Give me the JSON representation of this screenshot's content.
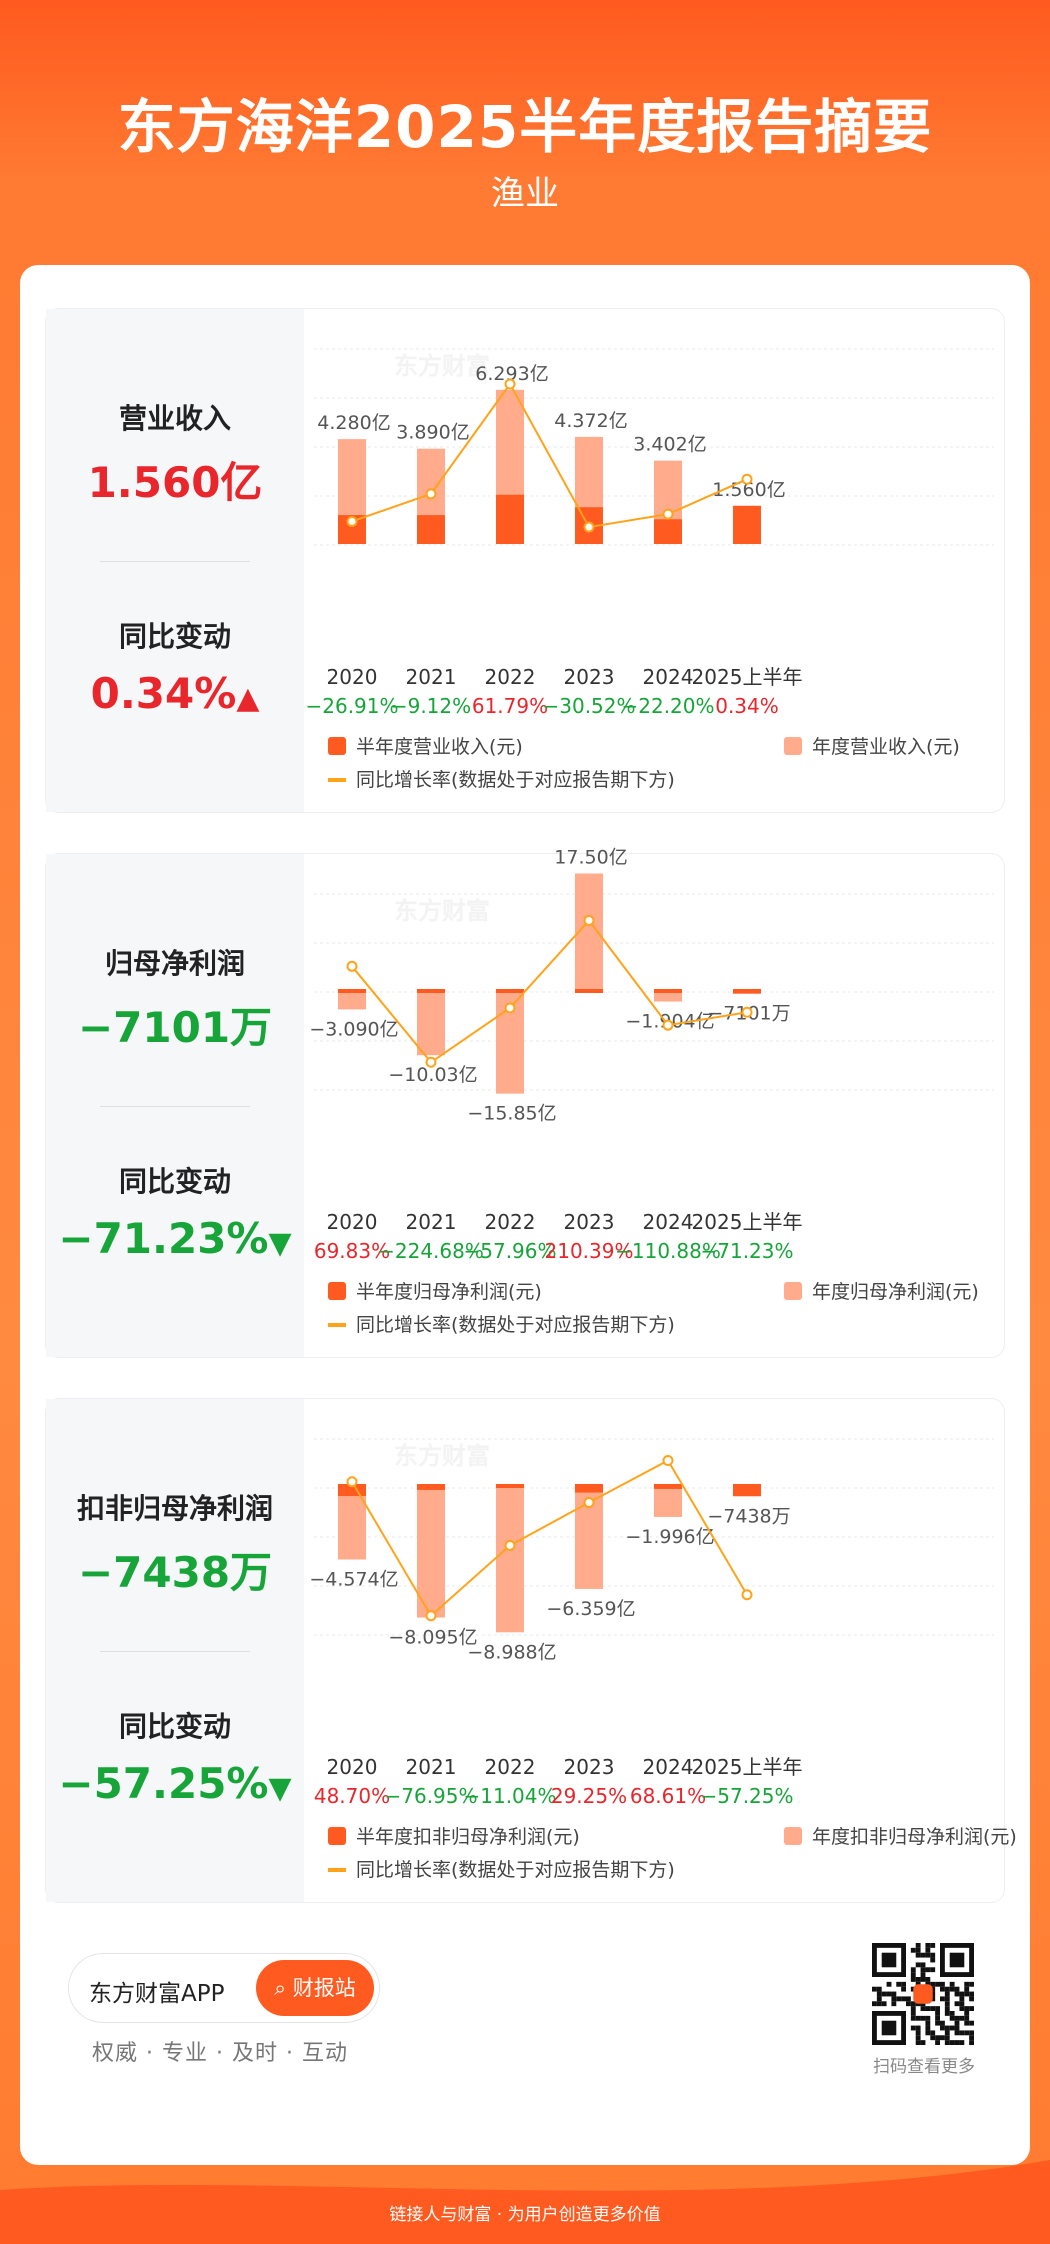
{
  "header": {
    "title": "东方海洋2025半年度报告摘要",
    "subtitle": "渔业"
  },
  "cards": [
    {
      "metric_label": "营业收入",
      "metric_value": "1.560亿",
      "change_label": "同比变动",
      "change_value": "0.34%",
      "change_dir": "up",
      "legend_half": "半年度营业收入(元)",
      "legend_annual": "年度营业收入(元)",
      "legend_line": "同比增长率(数据处于对应报告期下方)"
    },
    {
      "metric_label": "归母净利润",
      "metric_value": "−7101万",
      "change_label": "同比变动",
      "change_value": "−71.23%",
      "change_dir": "down",
      "legend_half": "半年度归母净利润(元)",
      "legend_annual": "年度归母净利润(元)",
      "legend_line": "同比增长率(数据处于对应报告期下方)"
    },
    {
      "metric_label": "扣非归母净利润",
      "metric_value": "−7438万",
      "change_label": "同比变动",
      "change_value": "−57.25%",
      "change_dir": "down",
      "legend_half": "半年度扣非归母净利润(元)",
      "legend_annual": "年度扣非归母净利润(元)",
      "legend_line": "同比增长率(数据处于对应报告期下方)"
    }
  ],
  "chart_data": [
    {
      "type": "bar",
      "categories": [
        "2020",
        "2021",
        "2022",
        "2023",
        "2024",
        "2025上半年"
      ],
      "series": [
        {
          "name": "半年度营业收入(元)",
          "values": [
            1.18,
            1.18,
            2.01,
            1.5,
            1.01,
            1.56
          ],
          "unit": "亿"
        },
        {
          "name": "年度营业收入(元)",
          "values": [
            4.28,
            3.89,
            6.293,
            4.372,
            3.402,
            null
          ],
          "unit": "亿",
          "labels": [
            "4.280亿",
            "3.890亿",
            "6.293亿",
            "4.372亿",
            "3.402亿",
            "1.560亿"
          ]
        },
        {
          "name": "同比增长率(数据处于对应报告期下方)",
          "type": "line",
          "values": [
            -26.91,
            -9.12,
            61.79,
            -30.52,
            -22.2,
            0.34
          ],
          "labels": [
            "−26.91%",
            "−9.12%",
            "61.79%",
            "−30.52%",
            "−22.20%",
            "0.34%"
          ]
        }
      ]
    },
    {
      "type": "bar",
      "categories": [
        "2020",
        "2021",
        "2022",
        "2023",
        "2024",
        "2025上半年"
      ],
      "series": [
        {
          "name": "半年度归母净利润(元)",
          "values": [
            -0.25,
            -0.04,
            -0.6,
            -0.04,
            -0.08,
            -0.7101
          ],
          "unit": "亿"
        },
        {
          "name": "年度归母净利润(元)",
          "values": [
            -3.09,
            -10.03,
            -15.85,
            17.5,
            -1.904,
            null
          ],
          "unit": "亿",
          "labels": [
            "−3.090亿",
            "−10.03亿",
            "−15.85亿",
            "17.50亿",
            "−1.904亿",
            "−7101万"
          ]
        },
        {
          "name": "同比增长率(数据处于对应报告期下方)",
          "type": "line",
          "values": [
            69.83,
            -224.68,
            -57.96,
            210.39,
            -110.88,
            -71.23
          ],
          "labels": [
            "69.83%",
            "−224.68%",
            "−57.96%",
            "210.39%",
            "−110.88%",
            "−71.23%"
          ]
        }
      ]
    },
    {
      "type": "bar",
      "categories": [
        "2020",
        "2021",
        "2022",
        "2023",
        "2024",
        "2025上半年"
      ],
      "series": [
        {
          "name": "半年度扣非归母净利润(元)",
          "values": [
            -0.73,
            -0.36,
            -0.05,
            -0.52,
            -0.3,
            -0.7438
          ],
          "unit": "亿"
        },
        {
          "name": "年度扣非归母净利润(元)",
          "values": [
            -4.574,
            -8.095,
            -8.988,
            -6.359,
            -1.996,
            null
          ],
          "unit": "亿",
          "labels": [
            "−4.574亿",
            "−8.095亿",
            "−8.988亿",
            "−6.359亿",
            "−1.996亿",
            "−7438万"
          ]
        },
        {
          "name": "同比增长率(数据处于对应报告期下方)",
          "type": "line",
          "values": [
            48.7,
            -76.95,
            -11.04,
            29.25,
            68.61,
            -57.25
          ],
          "labels": [
            "48.70%",
            "−76.95%",
            "−11.04%",
            "29.25%",
            "68.61%",
            "−57.25%"
          ]
        }
      ]
    }
  ],
  "footer": {
    "app_name": "东方财富APP",
    "app_button": "财报站",
    "slogan": "权威 · 专业 · 及时 · 互动",
    "qr_label": "扫码查看更多",
    "bottom_line": "链接人与财富 · 为用户创造更多价值",
    "watermark": "东方财富"
  },
  "colors": {
    "half_bar": "#ff5a1f",
    "annual_bar": "#ffab8c",
    "line": "#ffa31a",
    "up": "#e8262b",
    "down": "#17a53a"
  }
}
